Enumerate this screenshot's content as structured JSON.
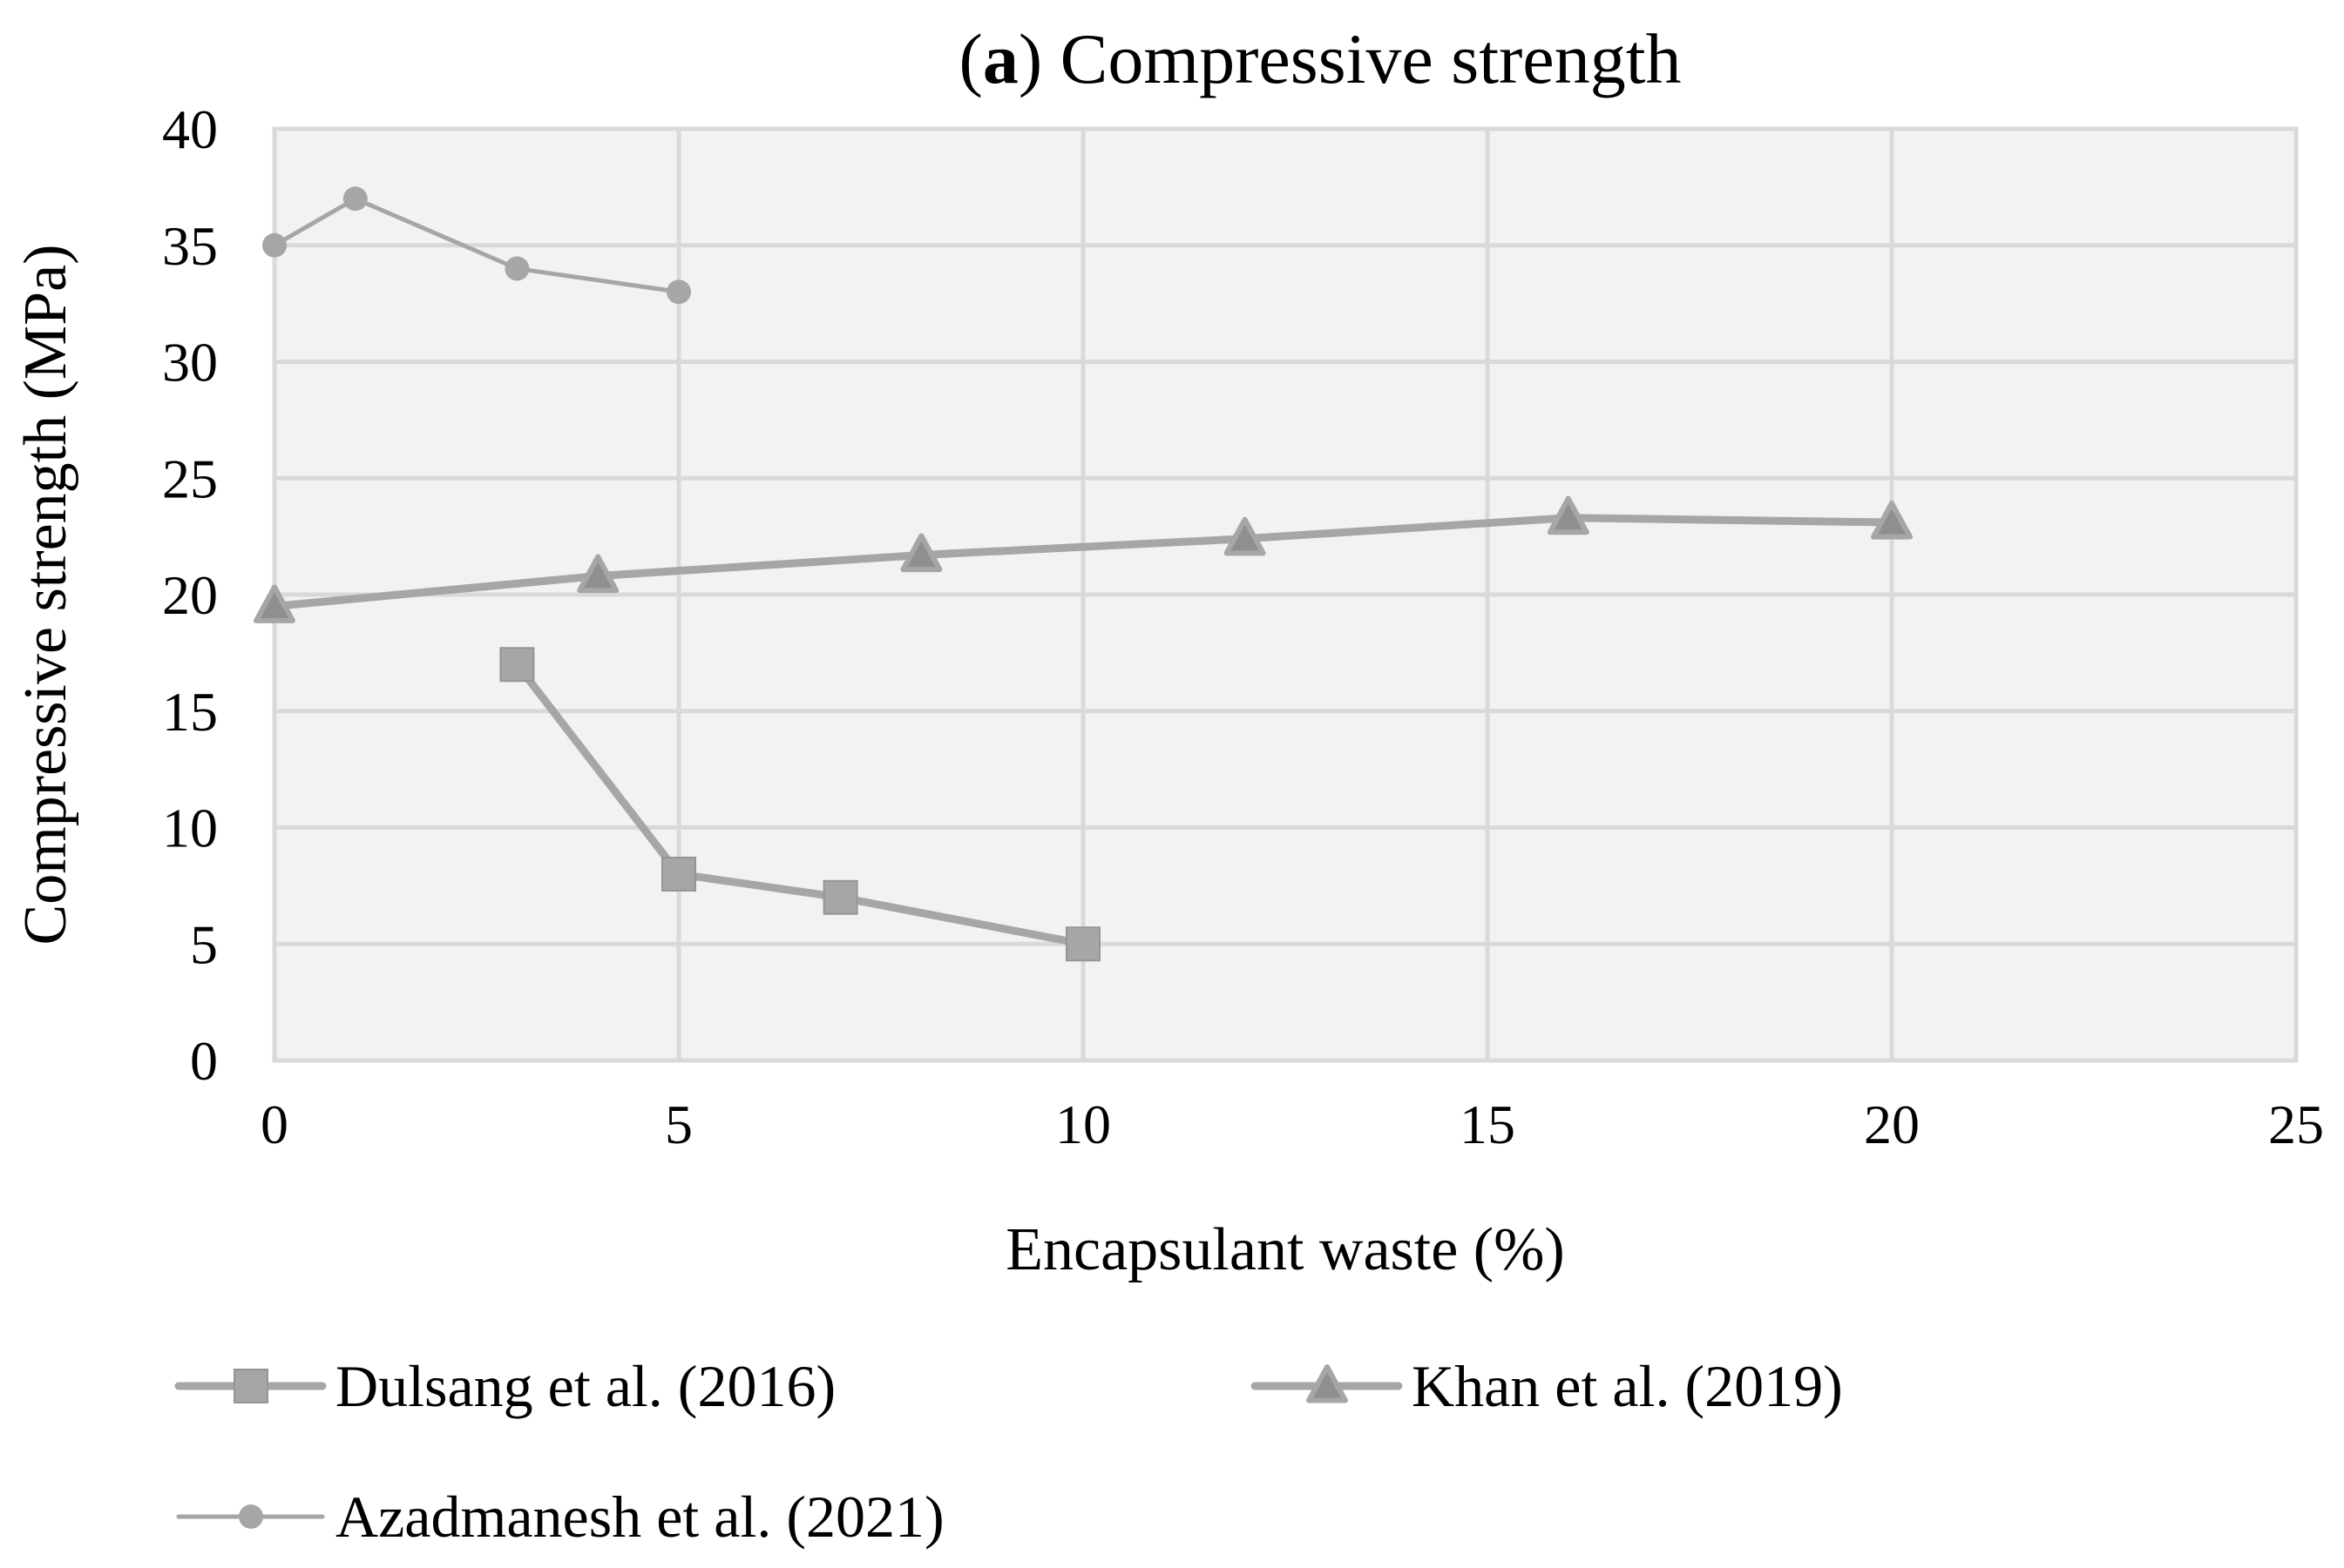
{
  "chart_data": {
    "type": "line",
    "title": {
      "prefix_open": "(",
      "prefix_bold": "a",
      "prefix_close": ")",
      "text": "Compressive strength"
    },
    "xlabel": "Encapsulant waste (%)",
    "ylabel": "Compressive strength (MPa)",
    "xlim": [
      0,
      25
    ],
    "ylim": [
      0,
      40
    ],
    "x_ticks": [
      0,
      5,
      10,
      15,
      20,
      25
    ],
    "y_ticks": [
      0,
      5,
      10,
      15,
      20,
      25,
      30,
      35,
      40
    ],
    "grid": true,
    "legend_position": "bottom",
    "series": [
      {
        "name": "Dulsang et al. (2016)",
        "marker": "square",
        "x": [
          3,
          5,
          7,
          10
        ],
        "y": [
          17,
          8,
          7,
          5
        ]
      },
      {
        "name": "Khan et al. (2019)",
        "marker": "triangle",
        "x": [
          0,
          4,
          8,
          12,
          16,
          20
        ],
        "y": [
          19.5,
          20.8,
          21.7,
          22.4,
          23.3,
          23.1
        ]
      },
      {
        "name": "Azadmanesh et al. (2021)",
        "marker": "circle",
        "x": [
          0,
          1,
          3,
          5
        ],
        "y": [
          35,
          37,
          34,
          33
        ]
      }
    ],
    "colors": {
      "plot_background": "#f2f2f2",
      "gridline": "#d9d9d9",
      "series_line": "#a6a6a6",
      "series_marker": "#a6a6a6"
    }
  }
}
